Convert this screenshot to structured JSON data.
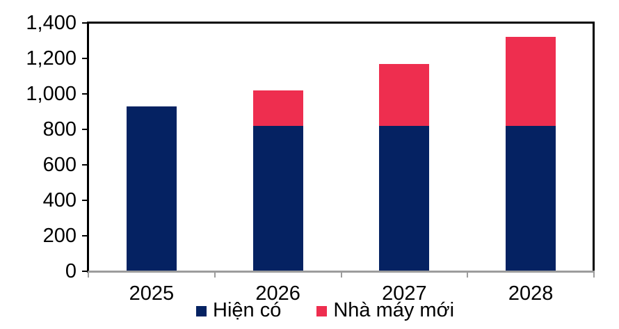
{
  "chart_data": {
    "type": "bar",
    "stacked": true,
    "title": "",
    "categories": [
      "2025",
      "2026",
      "2027",
      "2028"
    ],
    "series": [
      {
        "name": "Hiện có",
        "key": "hien-co",
        "color": "#052262",
        "values": [
          930,
          820,
          820,
          820
        ]
      },
      {
        "name": "Nhà máy mới",
        "key": "nha-may-moi",
        "color": "#EE2E4F",
        "values": [
          0,
          200,
          350,
          500
        ]
      }
    ],
    "ylim": [
      0,
      1400
    ],
    "ytick_step": 200,
    "ytick_labels": [
      "0",
      "200",
      "400",
      "600",
      "800",
      "1,000",
      "1,200",
      "1,400"
    ],
    "xlabel": "",
    "ylabel": "",
    "grid": false,
    "legend_position": "bottom",
    "colors": {
      "value_axis": "#000000",
      "category_axis": "#9C9C9C",
      "text": "#000000",
      "background": "#FFFFFF"
    }
  }
}
